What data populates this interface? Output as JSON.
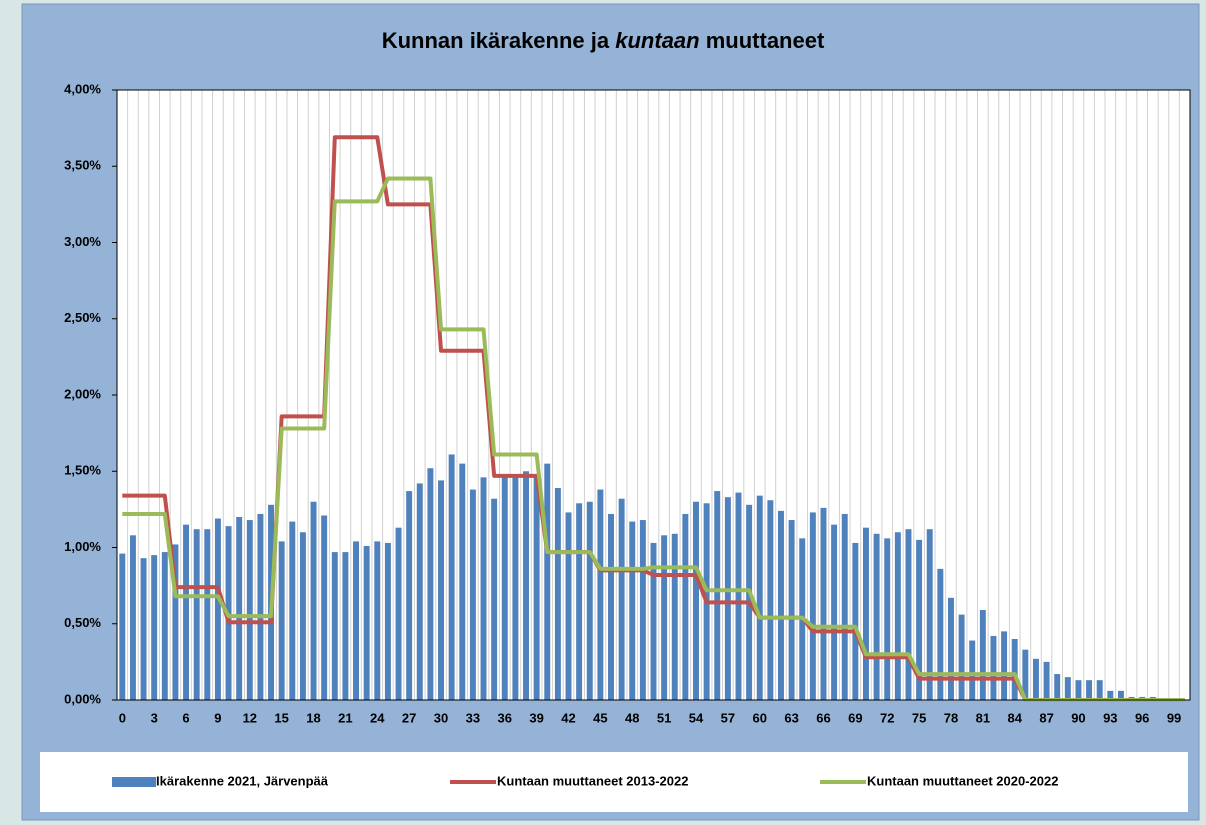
{
  "chart_data": {
    "type": "bar",
    "title": [
      "Kunnan ikärakenne ja",
      "kuntaan",
      "muuttaneet"
    ],
    "categories": [
      "0",
      null,
      null,
      "3",
      null,
      null,
      "6",
      null,
      null,
      "9",
      null,
      null,
      "12",
      null,
      null,
      "15",
      null,
      null,
      "18",
      null,
      null,
      "21",
      null,
      null,
      "24",
      null,
      null,
      "27",
      null,
      null,
      "30",
      null,
      null,
      "33",
      null,
      null,
      "36",
      null,
      null,
      "39",
      null,
      null,
      "42",
      null,
      null,
      "45",
      null,
      null,
      "48",
      null,
      null,
      "51",
      null,
      null,
      "54",
      null,
      null,
      "57",
      null,
      null,
      "60",
      null,
      null,
      "63",
      null,
      null,
      "66",
      null,
      null,
      "69",
      null,
      null,
      "72",
      null,
      null,
      "75",
      null,
      null,
      "78",
      null,
      null,
      "81",
      null,
      null,
      "84",
      null,
      null,
      "87",
      null,
      null,
      "90",
      null,
      null,
      "93",
      null,
      null,
      "96",
      null,
      null,
      "99",
      null
    ],
    "series": [
      {
        "name": "Ikärakenne 2021, Järvenpää",
        "type": "bar",
        "color": "#4f81bd",
        "values": [
          0.96,
          1.08,
          0.93,
          0.95,
          0.97,
          1.02,
          1.15,
          1.12,
          1.12,
          1.19,
          1.14,
          1.2,
          1.18,
          1.22,
          1.28,
          1.04,
          1.17,
          1.1,
          1.3,
          1.21,
          0.97,
          0.97,
          1.04,
          1.01,
          1.04,
          1.03,
          1.13,
          1.37,
          1.42,
          1.52,
          1.44,
          1.61,
          1.55,
          1.38,
          1.46,
          1.32,
          1.47,
          1.47,
          1.5,
          1.47,
          1.55,
          1.39,
          1.23,
          1.29,
          1.3,
          1.38,
          1.22,
          1.32,
          1.17,
          1.18,
          1.03,
          1.08,
          1.09,
          1.22,
          1.3,
          1.29,
          1.37,
          1.33,
          1.36,
          1.28,
          1.34,
          1.31,
          1.24,
          1.18,
          1.06,
          1.23,
          1.26,
          1.15,
          1.22,
          1.03,
          1.13,
          1.09,
          1.06,
          1.1,
          1.12,
          1.05,
          1.12,
          0.86,
          0.67,
          0.56,
          0.39,
          0.59,
          0.42,
          0.45,
          0.4,
          0.33,
          0.27,
          0.25,
          0.17,
          0.15,
          0.13,
          0.13,
          0.13,
          0.06,
          0.06,
          0.02,
          0.02,
          0.02,
          0.01,
          0.01,
          0
        ]
      },
      {
        "name": "Kuntaan muuttaneet 2013-2022",
        "type": "line",
        "color": "#c0504d",
        "values": [
          1.34,
          1.34,
          1.34,
          1.34,
          1.34,
          0.74,
          0.74,
          0.74,
          0.74,
          0.74,
          0.51,
          0.51,
          0.51,
          0.51,
          0.51,
          1.86,
          1.86,
          1.86,
          1.86,
          1.86,
          3.69,
          3.69,
          3.69,
          3.69,
          3.69,
          3.25,
          3.25,
          3.25,
          3.25,
          3.25,
          2.29,
          2.29,
          2.29,
          2.29,
          2.29,
          1.47,
          1.47,
          1.47,
          1.47,
          1.47,
          0.97,
          0.97,
          0.97,
          0.97,
          0.97,
          0.85,
          0.85,
          0.85,
          0.85,
          0.85,
          0.82,
          0.82,
          0.82,
          0.82,
          0.82,
          0.64,
          0.64,
          0.64,
          0.64,
          0.64,
          0.54,
          0.54,
          0.54,
          0.54,
          0.54,
          0.45,
          0.45,
          0.45,
          0.45,
          0.45,
          0.28,
          0.28,
          0.28,
          0.28,
          0.28,
          0.14,
          0.14,
          0.14,
          0.14,
          0.14,
          0.14,
          0.14,
          0.14,
          0.14,
          0.14,
          0,
          0,
          0,
          0,
          0,
          0,
          0,
          0,
          0,
          0,
          0,
          0,
          0,
          0,
          0,
          0
        ]
      },
      {
        "name": "Kuntaan muuttaneet 2020-2022",
        "type": "line",
        "color": "#9bbb59",
        "values": [
          1.22,
          1.22,
          1.22,
          1.22,
          1.22,
          0.68,
          0.68,
          0.68,
          0.68,
          0.68,
          0.55,
          0.55,
          0.55,
          0.55,
          0.55,
          1.78,
          1.78,
          1.78,
          1.78,
          1.78,
          3.27,
          3.27,
          3.27,
          3.27,
          3.27,
          3.42,
          3.42,
          3.42,
          3.42,
          3.42,
          2.43,
          2.43,
          2.43,
          2.43,
          2.43,
          1.61,
          1.61,
          1.61,
          1.61,
          1.61,
          0.97,
          0.97,
          0.97,
          0.97,
          0.97,
          0.86,
          0.86,
          0.86,
          0.86,
          0.86,
          0.87,
          0.87,
          0.87,
          0.87,
          0.87,
          0.72,
          0.72,
          0.72,
          0.72,
          0.72,
          0.54,
          0.54,
          0.54,
          0.54,
          0.54,
          0.48,
          0.48,
          0.48,
          0.48,
          0.48,
          0.3,
          0.3,
          0.3,
          0.3,
          0.3,
          0.17,
          0.17,
          0.17,
          0.17,
          0.17,
          0.17,
          0.17,
          0.17,
          0.17,
          0.17,
          0,
          0,
          0,
          0,
          0,
          0,
          0,
          0,
          0,
          0,
          0,
          0,
          0,
          0,
          0,
          0
        ]
      }
    ],
    "ylim": [
      0,
      4
    ],
    "yticks": [
      {
        "value": 0,
        "label": "0,00%"
      },
      {
        "value": 0.5,
        "label": "0,50%"
      },
      {
        "value": 1,
        "label": "1,00%"
      },
      {
        "value": 1.5,
        "label": "1,50%"
      },
      {
        "value": 2,
        "label": "2,00%"
      },
      {
        "value": 2.5,
        "label": "2,50%"
      },
      {
        "value": 3,
        "label": "3,00%"
      },
      {
        "value": 3.5,
        "label": "3,50%"
      },
      {
        "value": 4,
        "label": "4,00%"
      }
    ],
    "legend": "bottom"
  }
}
